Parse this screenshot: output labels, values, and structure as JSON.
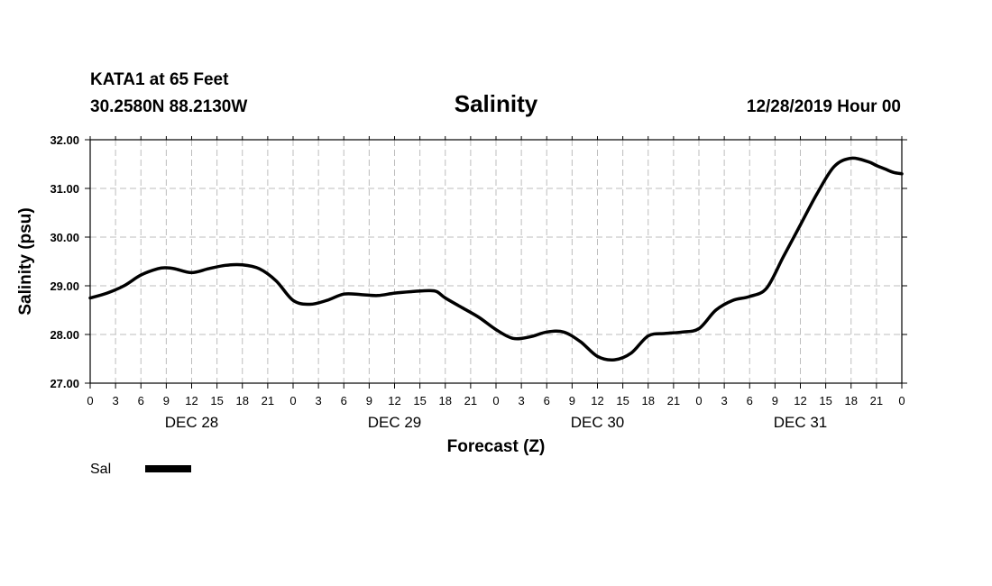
{
  "header": {
    "station": "KATA1 at 65 Feet",
    "coords": "30.2580N 88.2130W",
    "timestamp": "12/28/2019 Hour 00"
  },
  "chart_data": {
    "type": "line",
    "title": "Salinity",
    "xlabel": "Forecast (Z)",
    "ylabel": "Salinity (psu)",
    "ylim": [
      27.0,
      32.0
    ],
    "yticks": [
      "27.00",
      "28.00",
      "29.00",
      "30.00",
      "31.00",
      "32.00"
    ],
    "xlim_hours": [
      0,
      96
    ],
    "xticks": [
      "0",
      "3",
      "6",
      "9",
      "12",
      "15",
      "18",
      "21",
      "0",
      "3",
      "6",
      "9",
      "12",
      "15",
      "18",
      "21",
      "0",
      "3",
      "6",
      "9",
      "12",
      "15",
      "18",
      "21",
      "0",
      "3",
      "6",
      "9",
      "12",
      "15",
      "18",
      "21",
      "0"
    ],
    "days": [
      {
        "label": "DEC 28",
        "center_hour": 12
      },
      {
        "label": "DEC 29",
        "center_hour": 36
      },
      {
        "label": "DEC 30",
        "center_hour": 60
      },
      {
        "label": "DEC 31",
        "center_hour": 84
      }
    ],
    "grid": true,
    "series": [
      {
        "name": "Sal",
        "color": "#000000",
        "x": [
          0,
          2,
          4,
          6,
          8,
          9,
          10,
          12,
          14,
          16,
          18,
          20,
          22,
          24,
          26,
          28,
          30,
          32,
          34,
          36,
          38,
          40,
          41,
          42,
          44,
          46,
          48,
          50,
          52,
          54,
          56,
          58,
          60,
          62,
          64,
          66,
          68,
          70,
          72,
          74,
          76,
          78,
          80,
          82,
          84,
          86,
          88,
          90,
          92,
          93,
          94,
          95,
          96
        ],
        "values": [
          28.75,
          28.85,
          29.0,
          29.22,
          29.35,
          29.37,
          29.35,
          29.27,
          29.35,
          29.42,
          29.43,
          29.35,
          29.1,
          28.7,
          28.62,
          28.7,
          28.83,
          28.82,
          28.8,
          28.85,
          28.88,
          28.9,
          28.88,
          28.75,
          28.55,
          28.35,
          28.1,
          27.92,
          27.95,
          28.05,
          28.05,
          27.85,
          27.55,
          27.48,
          27.62,
          27.97,
          28.02,
          28.05,
          28.12,
          28.5,
          28.7,
          28.78,
          28.95,
          29.6,
          30.25,
          30.9,
          31.45,
          31.62,
          31.55,
          31.47,
          31.4,
          31.33,
          31.3
        ]
      }
    ],
    "legend": {
      "label": "Sal",
      "color": "#000000",
      "position": "bottom-left"
    }
  }
}
